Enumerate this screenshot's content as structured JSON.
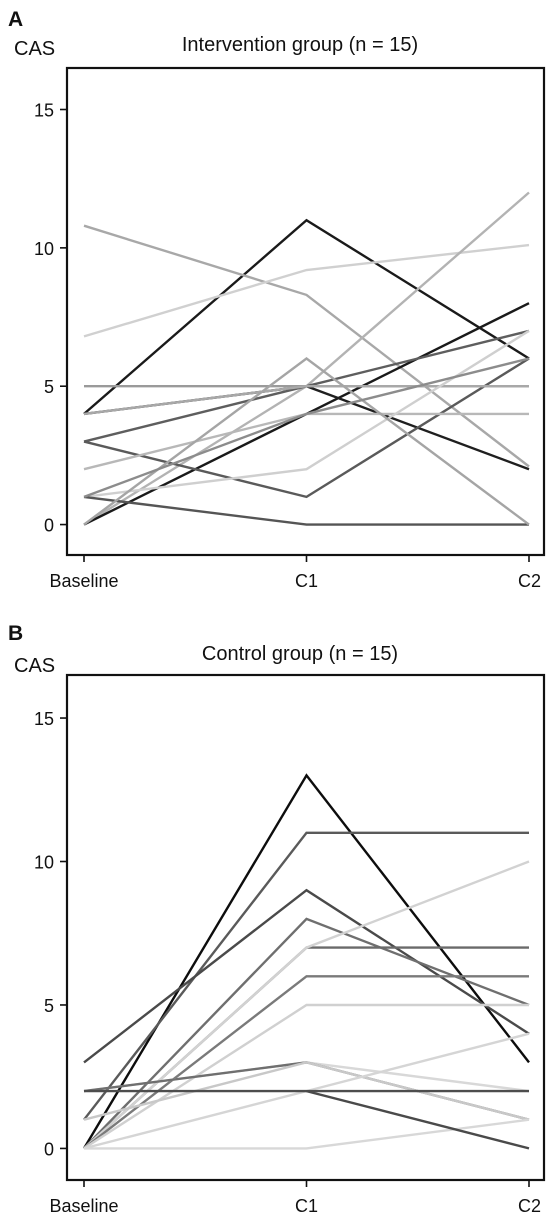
{
  "chart_data": [
    {
      "type": "line",
      "panel_label": "A",
      "title": "Intervention group (n = 15)",
      "ylabel": "CAS",
      "xlabel": "",
      "categories": [
        "Baseline",
        "C1",
        "C2"
      ],
      "yticks": [
        0,
        5,
        10,
        15
      ],
      "ylim": [
        -1.1,
        16.5
      ],
      "grid": false,
      "series": [
        {
          "values": [
            4,
            11,
            6
          ],
          "color": "#1a1a1a"
        },
        {
          "values": [
            10.8,
            8.3,
            2.1
          ],
          "color": "#a8a8a8"
        },
        {
          "values": [
            6.8,
            9.2,
            10.1
          ],
          "color": "#d0d0d0"
        },
        {
          "values": [
            0,
            5,
            12
          ],
          "color": "#b3b3b3"
        },
        {
          "values": [
            0,
            4,
            8
          ],
          "color": "#1a1a1a"
        },
        {
          "values": [
            4,
            5,
            2
          ],
          "color": "#1f1f1f"
        },
        {
          "values": [
            3,
            5,
            7
          ],
          "color": "#5e5e5e"
        },
        {
          "values": [
            3,
            1,
            6
          ],
          "color": "#5a5a5a"
        },
        {
          "values": [
            5,
            5,
            5
          ],
          "color": "#9a9a9a"
        },
        {
          "values": [
            4,
            5,
            5
          ],
          "color": "#a8a8a8"
        },
        {
          "values": [
            2,
            4,
            4
          ],
          "color": "#b8b8b8"
        },
        {
          "values": [
            1,
            2,
            7
          ],
          "color": "#cfcfcf"
        },
        {
          "values": [
            1,
            0,
            0
          ],
          "color": "#555555"
        },
        {
          "values": [
            0,
            6,
            0
          ],
          "color": "#a5a5a5"
        },
        {
          "values": [
            1,
            4,
            6
          ],
          "color": "#8c8c8c"
        }
      ]
    },
    {
      "type": "line",
      "panel_label": "B",
      "title": "Control group (n = 15)",
      "ylabel": "CAS",
      "xlabel": "",
      "categories": [
        "Baseline",
        "C1",
        "C2"
      ],
      "yticks": [
        0,
        5,
        10,
        15
      ],
      "ylim": [
        -1.1,
        16.5
      ],
      "grid": false,
      "series": [
        {
          "values": [
            0,
            13,
            3
          ],
          "color": "#0d0d0d"
        },
        {
          "values": [
            1,
            11,
            11
          ],
          "color": "#5a5a5a"
        },
        {
          "values": [
            3,
            9,
            4
          ],
          "color": "#4a4a4a"
        },
        {
          "values": [
            0,
            8,
            5
          ],
          "color": "#6f6f6f"
        },
        {
          "values": [
            0,
            7,
            7
          ],
          "color": "#6a6a6a"
        },
        {
          "values": [
            0,
            7,
            10
          ],
          "color": "#d2d2d2"
        },
        {
          "values": [
            0,
            6,
            6
          ],
          "color": "#7a7a7a"
        },
        {
          "values": [
            0,
            5,
            5
          ],
          "color": "#d0d0d0"
        },
        {
          "values": [
            2,
            3,
            2
          ],
          "color": "#d8d8d8"
        },
        {
          "values": [
            2,
            3,
            1
          ],
          "color": "#6f6f6f"
        },
        {
          "values": [
            1,
            3,
            1
          ],
          "color": "#c8c8c8"
        },
        {
          "values": [
            0,
            2,
            4
          ],
          "color": "#d5d5d5"
        },
        {
          "values": [
            0,
            0,
            1
          ],
          "color": "#d8d8d8"
        },
        {
          "values": [
            2,
            2,
            2
          ],
          "color": "#4d4d4d"
        },
        {
          "values": [
            null,
            2,
            0
          ],
          "color": "#4a4a4a"
        }
      ]
    }
  ]
}
